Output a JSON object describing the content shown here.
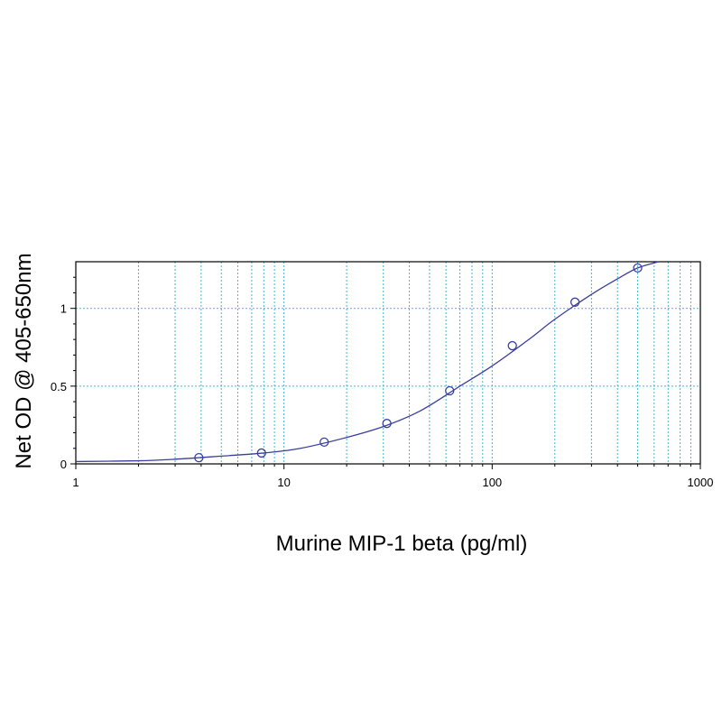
{
  "chart_data": {
    "type": "scatter",
    "title": "",
    "xlabel": "Murine MIP-1 beta (pg/ml)",
    "ylabel": "Net OD @ 405-650nm",
    "x_scale": "log",
    "xlim": [
      1,
      1000
    ],
    "ylim": [
      0,
      1.3
    ],
    "x_ticks": [
      1,
      10,
      100,
      1000
    ],
    "x_tick_labels": [
      "1",
      "10",
      "100",
      "1000"
    ],
    "y_ticks": [
      0,
      0.5,
      1
    ],
    "y_tick_labels": [
      "0",
      "0.5",
      "1"
    ],
    "grid": true,
    "legend": "none",
    "series": [
      {
        "x": [
          3.9,
          7.8,
          15.6,
          31.2,
          62.5,
          125,
          250,
          500
        ],
        "y": [
          0.04,
          0.07,
          0.14,
          0.26,
          0.47,
          0.76,
          1.04,
          1.26
        ]
      }
    ],
    "fit_curve": {
      "x": [
        1,
        2,
        3,
        5,
        8,
        12,
        20,
        30,
        45,
        70,
        100,
        150,
        200,
        300,
        400,
        500,
        630
      ],
      "y": [
        0.015,
        0.02,
        0.03,
        0.05,
        0.07,
        0.1,
        0.17,
        0.24,
        0.34,
        0.5,
        0.63,
        0.8,
        0.93,
        1.09,
        1.19,
        1.26,
        1.3
      ]
    },
    "colors": {
      "curve": "#3a3f9e",
      "marker": "#3a3f9e",
      "grid": "#3fb7d9",
      "axis": "#000000"
    }
  }
}
